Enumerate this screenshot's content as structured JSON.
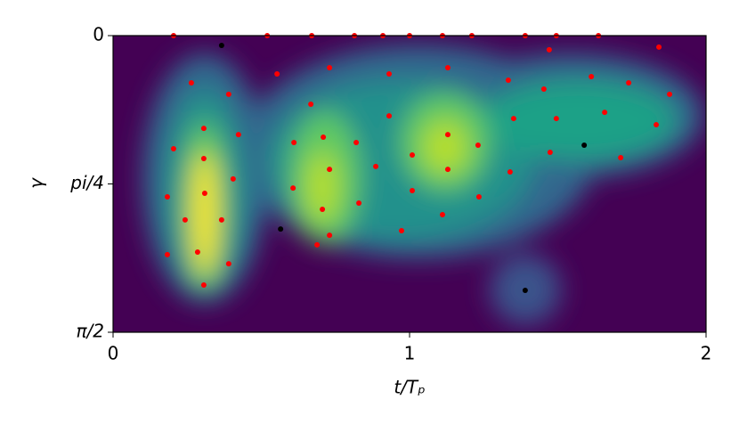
{
  "chart_data": {
    "type": "scatter",
    "xlabel": "t/Tₚ",
    "ylabel": "γ",
    "xlim": [
      0,
      2
    ],
    "xticks": [
      0,
      1,
      2
    ],
    "ylim": [
      1.5708,
      0
    ],
    "yticks": [
      0,
      {
        "value": 0.7854,
        "label": "pi/4"
      },
      {
        "value": 1.5708,
        "label": "π/2"
      }
    ],
    "series": [
      {
        "color": "#ff0000",
        "x": [
          0.204,
          0.52,
          0.67,
          0.814,
          0.91,
          1.0,
          1.111,
          1.21,
          1.39,
          1.495,
          1.637,
          0.264,
          0.39,
          0.553,
          0.73,
          0.931,
          1.129,
          1.333,
          1.471,
          1.613,
          1.739,
          1.877,
          1.841,
          0.667,
          0.931,
          1.351,
          1.453,
          1.495,
          1.658,
          1.832,
          0.306,
          0.423,
          0.61,
          0.709,
          0.82,
          1.129,
          1.231,
          1.474,
          1.712,
          0.204,
          0.306,
          0.73,
          0.886,
          1.009,
          1.129,
          1.339,
          0.405,
          0.607,
          0.183,
          0.309,
          1.009,
          1.234,
          0.829,
          0.706,
          0.243,
          0.366,
          1.111,
          0.973,
          0.73,
          0.688,
          0.285,
          0.183,
          0.39,
          0.306
        ],
        "values": [
          0,
          0,
          0,
          0,
          0,
          0,
          0,
          0,
          0,
          0,
          0,
          0.25,
          0.311,
          0.203,
          0.17,
          0.203,
          0.17,
          0.236,
          0.075,
          0.217,
          0.25,
          0.311,
          0.061,
          0.363,
          0.425,
          0.439,
          0.283,
          0.439,
          0.406,
          0.472,
          0.491,
          0.524,
          0.566,
          0.538,
          0.566,
          0.524,
          0.58,
          0.618,
          0.646,
          0.599,
          0.651,
          0.708,
          0.693,
          0.632,
          0.708,
          0.722,
          0.759,
          0.807,
          0.854,
          0.835,
          0.821,
          0.854,
          0.887,
          0.92,
          0.976,
          0.976,
          0.948,
          1.033,
          1.057,
          1.108,
          1.146,
          1.16,
          1.208,
          1.321
        ]
      },
      {
        "color": "#000000",
        "x": [
          0.366,
          0.565,
          1.589,
          1.39
        ],
        "values": [
          0.052,
          1.024,
          0.58,
          1.349
        ]
      }
    ]
  }
}
